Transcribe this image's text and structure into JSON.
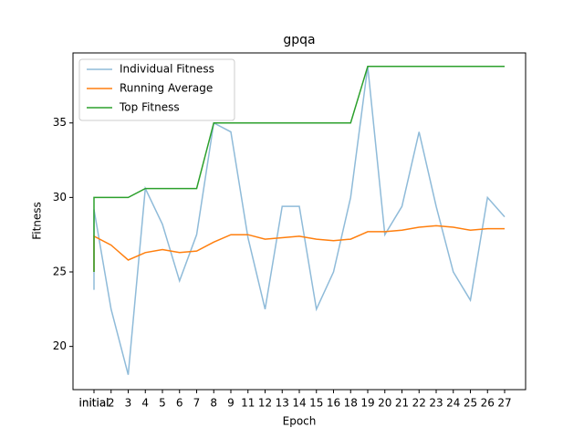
{
  "chart_data": {
    "type": "line",
    "title": "gpqa",
    "x_label": "Epoch",
    "y_label": "Fitness",
    "x": [
      "initial",
      "initial",
      "2",
      "3",
      "4",
      "5",
      "6",
      "7",
      "8",
      "9",
      "11",
      "12",
      "13",
      "14",
      "15",
      "16",
      "18",
      "19",
      "20",
      "21",
      "22",
      "23",
      "24",
      "25",
      "26",
      "27"
    ],
    "series": [
      {
        "name": "Individual Fitness",
        "color": "#1f77b4",
        "opacity": 0.5,
        "values": [
          23.8,
          29.2,
          22.5,
          18.1,
          30.6,
          28.2,
          24.4,
          27.5,
          35,
          34.4,
          27.3,
          22.5,
          29.4,
          29.4,
          22.5,
          25,
          30,
          38.8,
          27.5,
          29.4,
          34.4,
          29.4,
          25,
          23.1,
          30,
          28.7
        ]
      },
      {
        "name": "Running Average",
        "color": "#ff7f0e",
        "values": [
          25,
          27.4,
          26.8,
          25.8,
          26.3,
          26.5,
          26.3,
          26.4,
          27.0,
          27.5,
          27.5,
          27.2,
          27.3,
          27.4,
          27.2,
          27.1,
          27.2,
          27.7,
          27.7,
          27.8,
          28.0,
          28.1,
          28.0,
          27.8,
          27.9,
          27.9
        ]
      },
      {
        "name": "Top Fitness",
        "color": "#2ca02c",
        "values": [
          25,
          30,
          30,
          30,
          30.6,
          30.6,
          30.6,
          30.6,
          35,
          35,
          35,
          35,
          35,
          35,
          35,
          35,
          35,
          38.8,
          38.8,
          38.8,
          38.8,
          38.8,
          38.8,
          38.8,
          38.8,
          38.8
        ]
      }
    ],
    "ylim": [
      17.1,
      39.7
    ],
    "yticks": [
      20,
      25,
      30,
      35
    ],
    "legend": "upper left"
  }
}
